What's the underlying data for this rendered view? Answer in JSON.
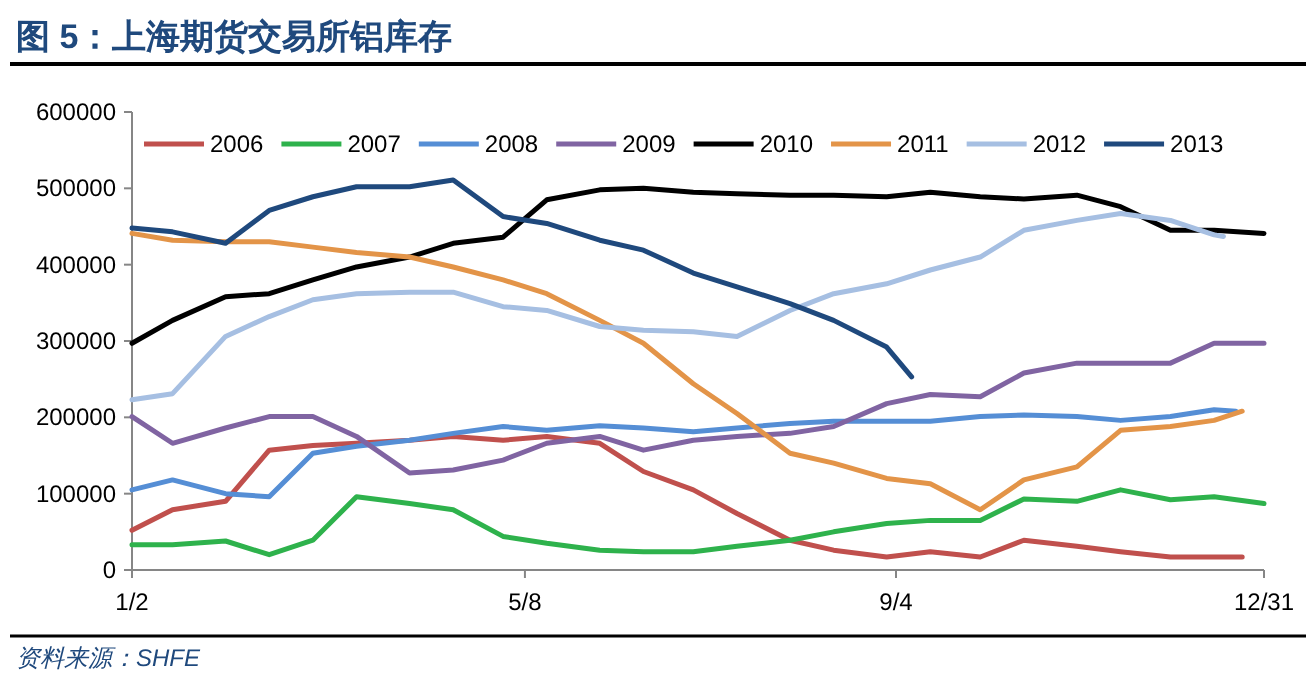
{
  "chart_data": {
    "type": "line",
    "title": "图 5：上海期货交易所铝库存",
    "annotations": [
      "资料来源：SHFE"
    ],
    "x": [
      "--01-02",
      "--01-15",
      "--02-01",
      "--02-15",
      "--03-01",
      "--03-15",
      "--04-01",
      "--04-15",
      "--05-01",
      "--05-15",
      "--06-01",
      "--06-15",
      "--07-01",
      "--07-15",
      "--08-01",
      "--08-15",
      "--09-01",
      "--09-15",
      "--10-01",
      "--10-15",
      "--11-01",
      "--11-15",
      "--12-01",
      "--12-15",
      "--12-31"
    ],
    "xlim": [
      "--01-02",
      "--12-31"
    ],
    "xticks": [
      {
        "value": "--01-02",
        "label": "1/2"
      },
      {
        "value": "--05-08",
        "label": "5/8"
      },
      {
        "value": "--09-04",
        "label": "9/4"
      },
      {
        "value": "--12-31",
        "label": "12/31"
      }
    ],
    "ylim": [
      0,
      600000
    ],
    "yticks": [
      0,
      100000,
      200000,
      300000,
      400000,
      500000,
      600000
    ],
    "legend": "top",
    "grid": false,
    "series": [
      {
        "name": "2006",
        "color": "#c0504d",
        "x": [
          "--01-02",
          "--01-15",
          "--02-01",
          "--02-15",
          "--03-01",
          "--03-15",
          "--04-01",
          "--04-15",
          "--05-01",
          "--05-15",
          "--06-01",
          "--06-15",
          "--07-01",
          "--07-15",
          "--08-01",
          "--08-15",
          "--09-01",
          "--09-15",
          "--10-01",
          "--10-15",
          "--11-01",
          "--11-15",
          "--12-01",
          "--12-15",
          "--12-24"
        ],
        "values": [
          52000,
          79000,
          90000,
          157000,
          163000,
          166000,
          170000,
          175000,
          170000,
          175000,
          166000,
          129000,
          105000,
          74000,
          39000,
          26000,
          17000,
          24000,
          17000,
          39000,
          31000,
          24000,
          17000,
          17000,
          17000
        ]
      },
      {
        "name": "2007",
        "color": "#2eb24c",
        "values": [
          33000,
          33000,
          38000,
          20000,
          39000,
          96000,
          87000,
          79000,
          44000,
          35000,
          26000,
          24000,
          24000,
          31000,
          39000,
          50000,
          61000,
          65000,
          65000,
          93000,
          90000,
          105000,
          92000,
          96000,
          87000
        ]
      },
      {
        "name": "2008",
        "color": "#558ed5",
        "x": [
          "--01-02",
          "--01-15",
          "--02-01",
          "--02-15",
          "--03-01",
          "--03-15",
          "--04-01",
          "--04-15",
          "--05-01",
          "--05-15",
          "--06-01",
          "--06-15",
          "--07-01",
          "--07-15",
          "--08-01",
          "--08-15",
          "--09-01",
          "--09-15",
          "--10-01",
          "--10-15",
          "--11-01",
          "--11-15",
          "--12-01",
          "--12-15",
          "--12-22"
        ],
        "values": [
          105000,
          118000,
          100000,
          96000,
          153000,
          162000,
          170000,
          179000,
          188000,
          183000,
          189000,
          186000,
          181000,
          186000,
          192000,
          195000,
          195000,
          195000,
          201000,
          203000,
          201000,
          196000,
          201000,
          210000,
          208000
        ]
      },
      {
        "name": "2009",
        "color": "#8064a2",
        "values": [
          201000,
          166000,
          186000,
          201000,
          201000,
          175000,
          127000,
          131000,
          144000,
          166000,
          175000,
          157000,
          170000,
          175000,
          179000,
          188000,
          218000,
          230000,
          227000,
          258000,
          271000,
          271000,
          271000,
          297000,
          297000
        ]
      },
      {
        "name": "2010",
        "color": "#000000",
        "values": [
          297000,
          327000,
          358000,
          362000,
          380000,
          397000,
          410000,
          428000,
          436000,
          485000,
          498000,
          500000,
          495000,
          493000,
          491000,
          491000,
          489000,
          495000,
          489000,
          486000,
          491000,
          476000,
          445000,
          445000,
          441000
        ]
      },
      {
        "name": "2011",
        "color": "#e39448",
        "x": [
          "--01-02",
          "--01-15",
          "--02-01",
          "--02-15",
          "--03-01",
          "--03-15",
          "--04-01",
          "--04-15",
          "--05-01",
          "--05-15",
          "--06-01",
          "--06-15",
          "--07-01",
          "--07-15",
          "--08-01",
          "--08-15",
          "--09-01",
          "--09-15",
          "--10-01",
          "--10-15",
          "--11-01",
          "--11-15",
          "--12-01",
          "--12-15",
          "--12-24"
        ],
        "values": [
          441000,
          432000,
          430000,
          430000,
          423000,
          416000,
          410000,
          397000,
          380000,
          362000,
          327000,
          297000,
          244000,
          205000,
          153000,
          140000,
          120000,
          113000,
          79000,
          118000,
          135000,
          183000,
          188000,
          196000,
          208000
        ]
      },
      {
        "name": "2012",
        "color": "#a6bfe2",
        "x": [
          "--01-02",
          "--01-15",
          "--02-01",
          "--02-15",
          "--03-01",
          "--03-15",
          "--04-01",
          "--04-15",
          "--05-01",
          "--05-15",
          "--06-01",
          "--06-15",
          "--07-01",
          "--07-15",
          "--08-01",
          "--08-15",
          "--09-01",
          "--09-15",
          "--10-01",
          "--10-15",
          "--11-01",
          "--11-15",
          "--12-01",
          "--12-15",
          "--12-18"
        ],
        "values": [
          223000,
          231000,
          306000,
          332000,
          354000,
          362000,
          364000,
          364000,
          345000,
          340000,
          319000,
          314000,
          312000,
          306000,
          340000,
          362000,
          375000,
          393000,
          410000,
          445000,
          458000,
          467000,
          458000,
          439000,
          437000
        ]
      },
      {
        "name": "2013",
        "color": "#1f497d",
        "x": [
          "--01-02",
          "--01-15",
          "--02-01",
          "--02-15",
          "--03-01",
          "--03-15",
          "--04-01",
          "--04-15",
          "--05-01",
          "--05-15",
          "--06-01",
          "--06-15",
          "--07-01",
          "--07-15",
          "--08-01",
          "--08-15",
          "--09-01",
          "--09-09"
        ],
        "values": [
          448000,
          443000,
          428000,
          471000,
          489000,
          502000,
          502000,
          511000,
          463000,
          454000,
          432000,
          419000,
          389000,
          371000,
          349000,
          327000,
          292000,
          253000
        ]
      }
    ]
  }
}
